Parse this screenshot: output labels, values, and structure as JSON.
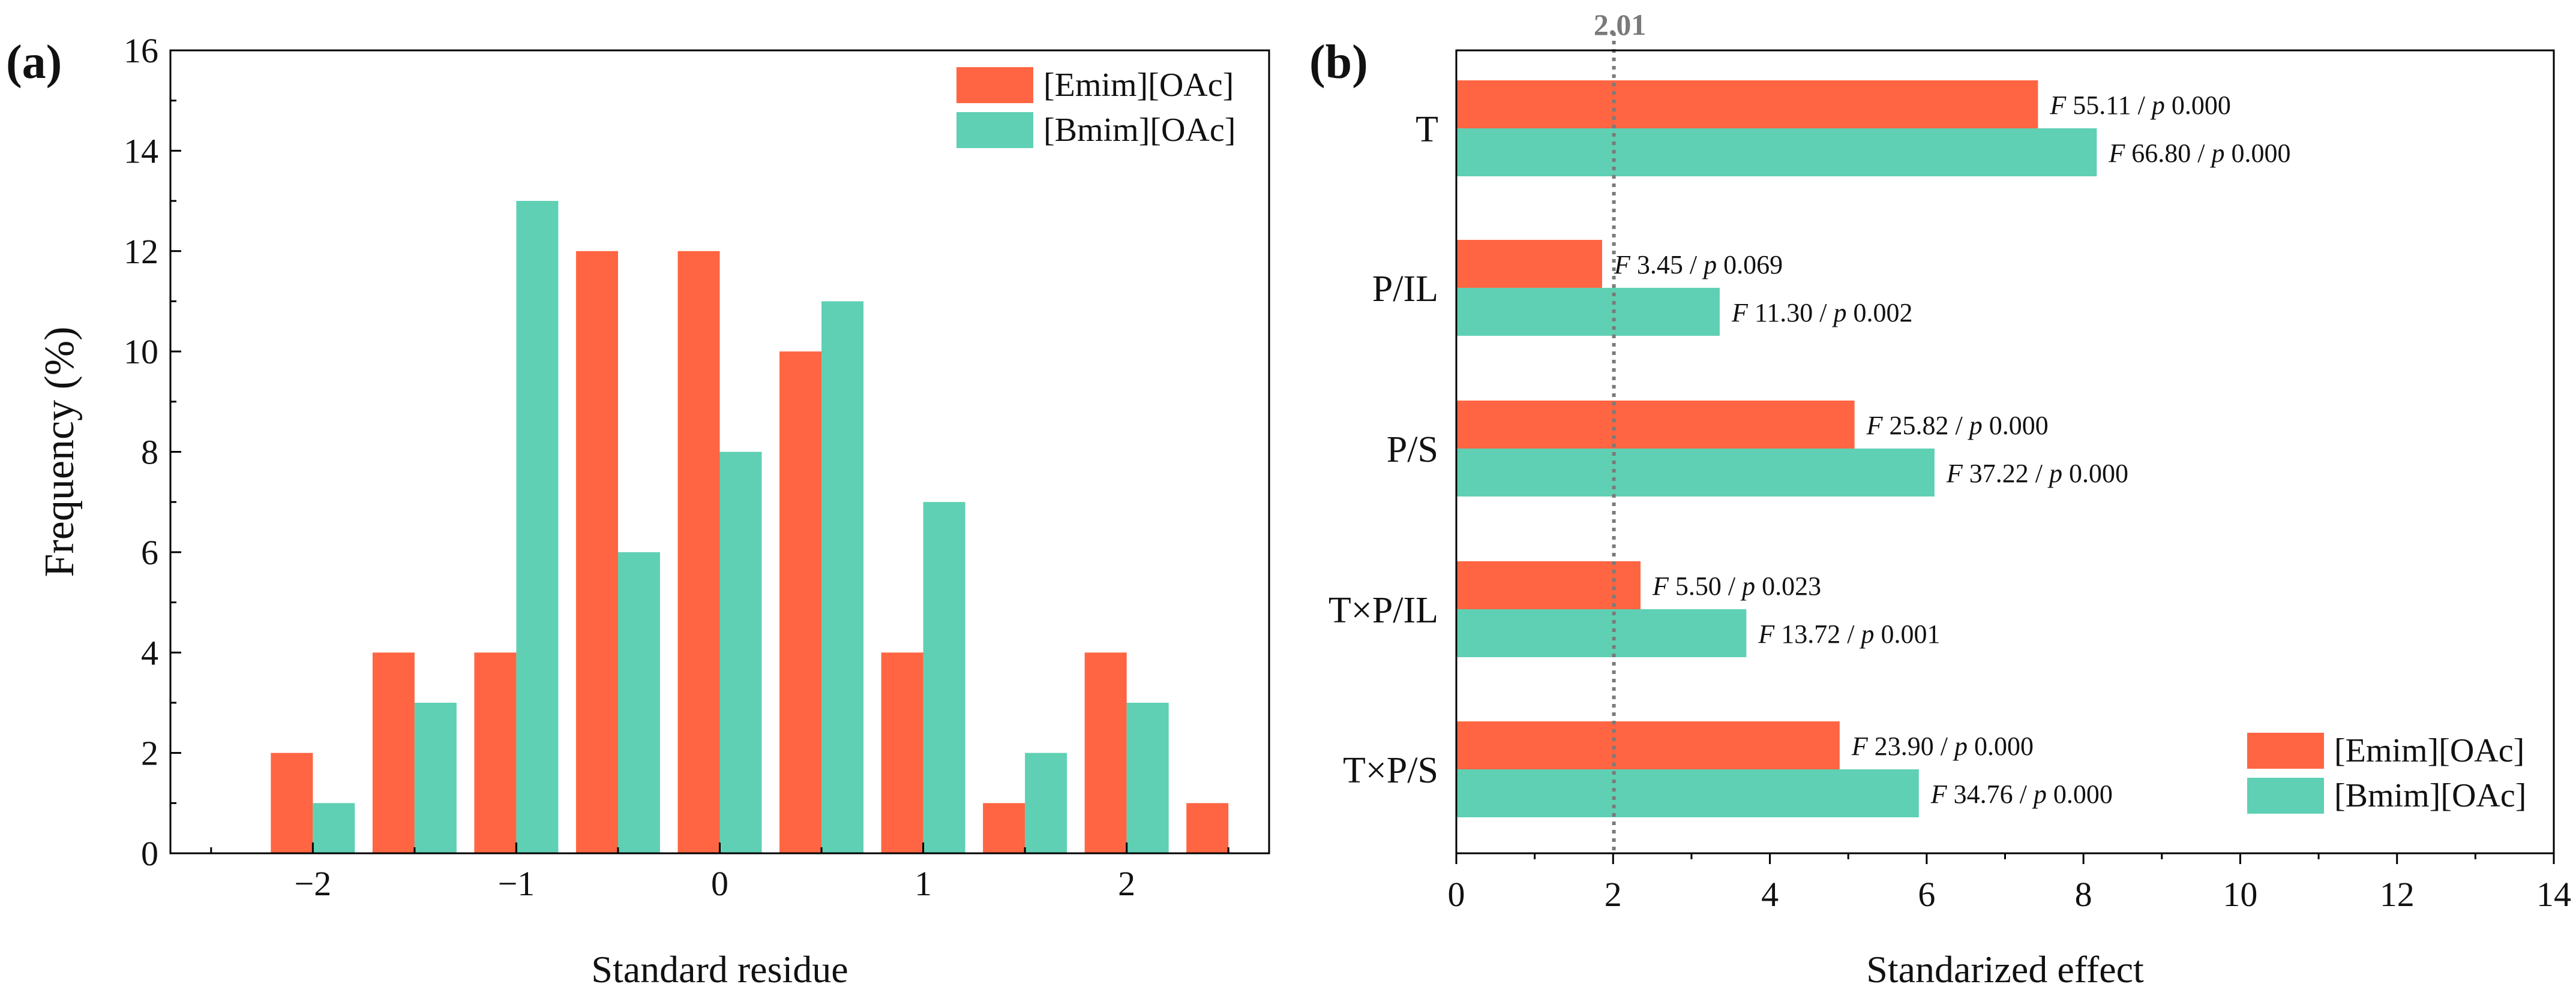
{
  "colors": {
    "series_a": "#FF6542",
    "series_b": "#5FD0B3",
    "axis": "#000000",
    "refline": "#7a7a7a"
  },
  "chart_data": [
    {
      "panel": "(a)",
      "type": "bar",
      "orientation": "vertical",
      "xlabel": "Standard residue",
      "ylabel": "Frequency (%)",
      "xlim": [
        -2.7,
        2.7
      ],
      "ylim": [
        0,
        16
      ],
      "xticks": [
        "−2",
        "−1",
        "0",
        "1",
        "2"
      ],
      "yticks": [
        "0",
        "2",
        "4",
        "6",
        "8",
        "10",
        "12",
        "14",
        "16"
      ],
      "x": [
        -2.0,
        -1.5,
        -1.0,
        -0.5,
        0.0,
        0.5,
        1.0,
        1.5,
        2.0,
        2.5
      ],
      "series": [
        {
          "name": "[Emim][OAc]",
          "values": [
            2,
            4,
            4,
            12,
            12,
            10,
            4,
            1,
            4,
            1
          ]
        },
        {
          "name": "[Bmim][OAc]",
          "values": [
            1,
            3,
            13,
            6,
            8,
            11,
            7,
            2,
            3,
            0
          ]
        }
      ],
      "legend": "top-right",
      "grid": false
    },
    {
      "panel": "(b)",
      "type": "bar",
      "orientation": "horizontal",
      "xlabel": "Standarized effect",
      "ylabel": "",
      "xlim": [
        0,
        14
      ],
      "xticks": [
        "0",
        "2",
        "4",
        "6",
        "8",
        "10",
        "12",
        "14"
      ],
      "categories": [
        "T",
        "P/IL",
        "P/S",
        "T×P/IL",
        "T×P/S"
      ],
      "series": [
        {
          "name": "[Emim][OAc]",
          "values": [
            7.42,
            1.86,
            5.08,
            2.35,
            4.89
          ],
          "labels": [
            {
              "f": "55.11",
              "p": "0.000"
            },
            {
              "f": "3.45",
              "p": "0.069"
            },
            {
              "f": "25.82",
              "p": "0.000"
            },
            {
              "f": "5.50",
              "p": "0.023"
            },
            {
              "f": "23.90",
              "p": "0.000"
            }
          ]
        },
        {
          "name": "[Bmim][OAc]",
          "values": [
            8.17,
            3.36,
            6.1,
            3.7,
            5.9
          ],
          "labels": [
            {
              "f": "66.80",
              "p": "0.000"
            },
            {
              "f": "11.30",
              "p": "0.002"
            },
            {
              "f": "37.22",
              "p": "0.000"
            },
            {
              "f": "13.72",
              "p": "0.001"
            },
            {
              "f": "34.76",
              "p": "0.000"
            }
          ]
        }
      ],
      "reference_line": {
        "value": 2.01,
        "label": "2.01",
        "style": "dotted"
      },
      "legend": "bottom-right",
      "grid": false
    }
  ]
}
